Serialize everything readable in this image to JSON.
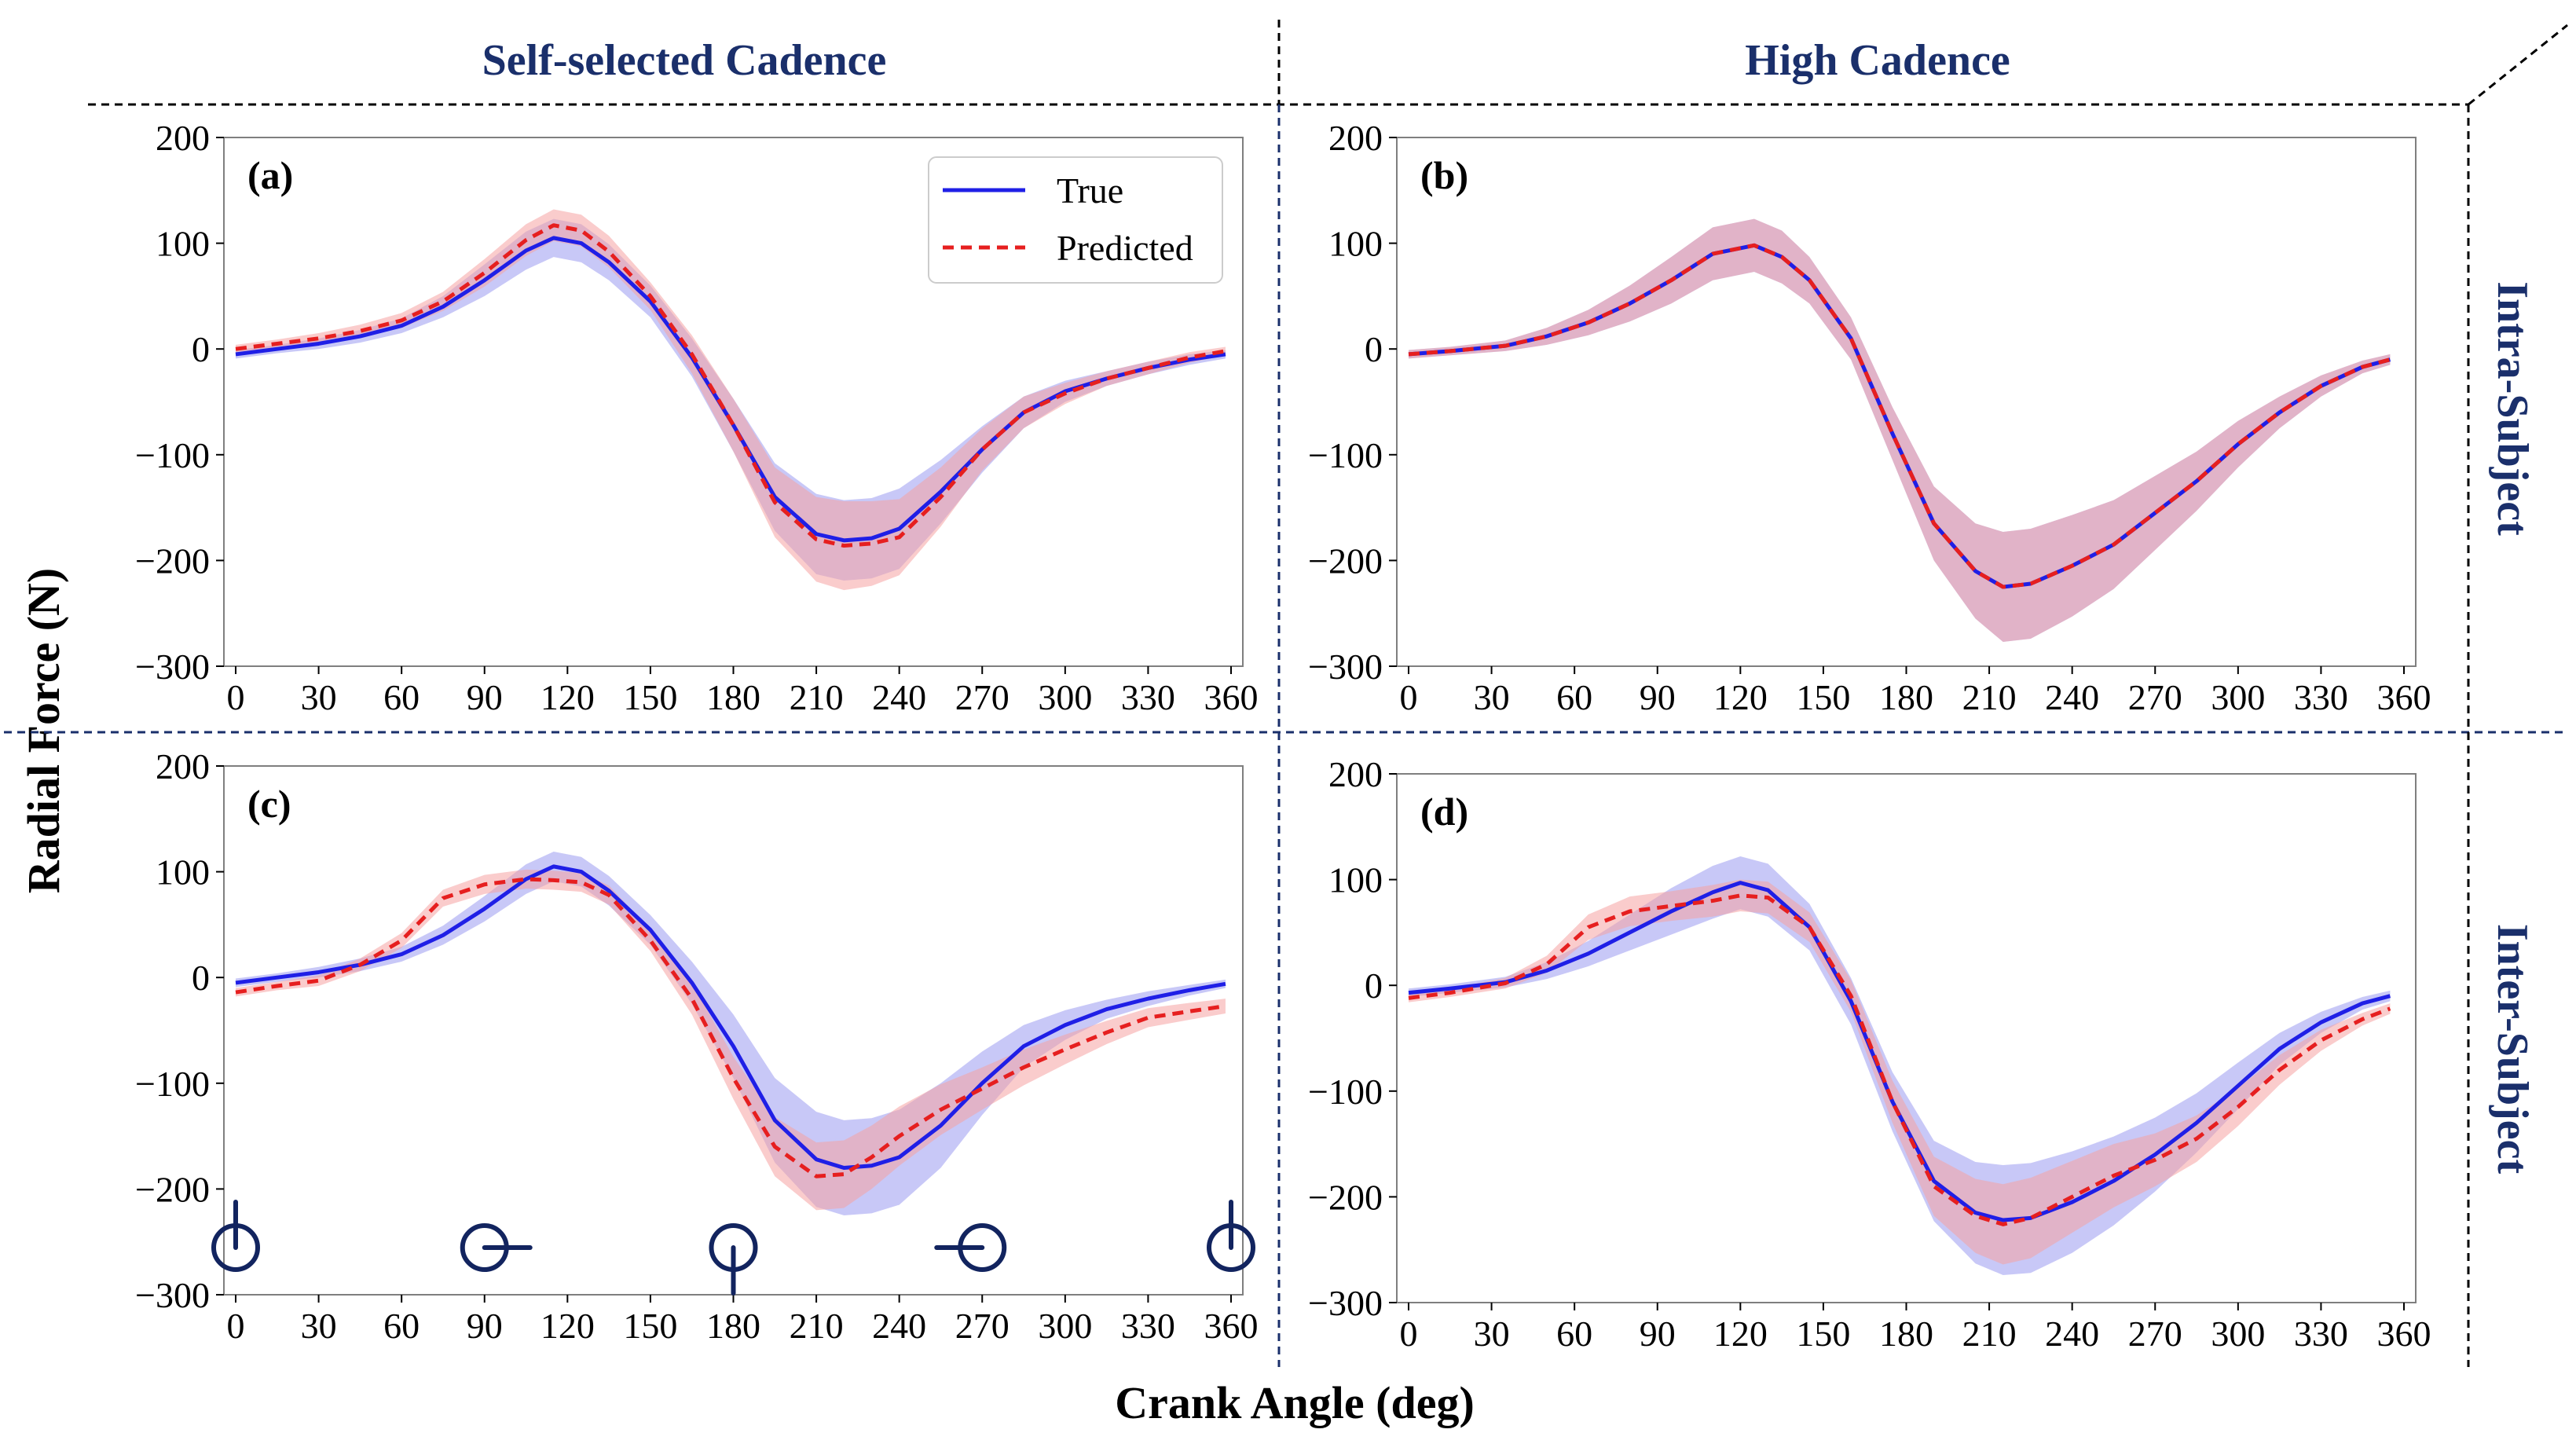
{
  "figure": {
    "column_headers": [
      "Self-selected Cadence",
      "High Cadence"
    ],
    "row_headers": [
      "Intra-Subject",
      "Inter-Subject"
    ],
    "ylabel": "Radial Force (N)",
    "xlabel": "Crank Angle (deg)",
    "legend": {
      "true_label": "True",
      "predicted_label": "Predicted"
    }
  },
  "colors": {
    "true_line": "#1f1fe6",
    "predicted_line": "#e61f1f",
    "true_band": "#9a9af0",
    "predicted_band": "#f5a3a3",
    "header_text": "#1a2f6b",
    "crank_icon": "#12245f",
    "divider": "#000000",
    "divider_blue": "#1a2f6b"
  },
  "chart_data": [
    {
      "id": "a",
      "panel_label": "(a)",
      "type": "line",
      "xlim": [
        0,
        360
      ],
      "ylim": [
        -300,
        200
      ],
      "xticks": [
        0,
        30,
        60,
        90,
        120,
        150,
        180,
        210,
        240,
        270,
        300,
        330,
        360
      ],
      "yticks": [
        200,
        100,
        0,
        -100,
        -200,
        -300
      ],
      "x": [
        0,
        15,
        30,
        45,
        60,
        75,
        90,
        105,
        115,
        125,
        135,
        150,
        165,
        180,
        195,
        210,
        220,
        230,
        240,
        255,
        270,
        285,
        300,
        315,
        330,
        345,
        358
      ],
      "series": [
        {
          "name": "True",
          "values": [
            -5,
            0,
            5,
            12,
            22,
            40,
            65,
            93,
            105,
            100,
            82,
            45,
            -8,
            -72,
            -140,
            -175,
            -181,
            -179,
            -170,
            -135,
            -95,
            -60,
            -40,
            -28,
            -18,
            -10,
            -5
          ],
          "spread": [
            4,
            4,
            5,
            6,
            7,
            10,
            15,
            18,
            18,
            18,
            17,
            15,
            18,
            25,
            32,
            38,
            38,
            38,
            38,
            30,
            22,
            15,
            10,
            7,
            6,
            5,
            4
          ]
        },
        {
          "name": "Predicted",
          "values": [
            0,
            5,
            10,
            17,
            27,
            45,
            72,
            103,
            117,
            112,
            92,
            50,
            -5,
            -72,
            -145,
            -180,
            -186,
            -184,
            -178,
            -140,
            -95,
            -60,
            -42,
            -28,
            -18,
            -8,
            -2
          ],
          "spread": [
            4,
            4,
            5,
            6,
            7,
            9,
            13,
            15,
            15,
            15,
            15,
            13,
            18,
            25,
            33,
            40,
            42,
            40,
            36,
            28,
            20,
            15,
            10,
            7,
            6,
            5,
            4
          ]
        }
      ],
      "legend": "upper-right"
    },
    {
      "id": "b",
      "panel_label": "(b)",
      "type": "line",
      "xlim": [
        0,
        360
      ],
      "ylim": [
        -300,
        200
      ],
      "xticks": [
        0,
        30,
        60,
        90,
        120,
        150,
        180,
        210,
        240,
        270,
        300,
        330,
        360
      ],
      "yticks": [
        200,
        100,
        0,
        -100,
        -200,
        -300
      ],
      "x": [
        0,
        15,
        35,
        50,
        65,
        80,
        95,
        110,
        125,
        135,
        145,
        160,
        175,
        190,
        205,
        215,
        225,
        240,
        255,
        270,
        285,
        300,
        315,
        330,
        345,
        355
      ],
      "series": [
        {
          "name": "True",
          "values": [
            -5,
            -2,
            3,
            12,
            25,
            43,
            65,
            90,
            98,
            87,
            65,
            10,
            -80,
            -165,
            -210,
            -225,
            -222,
            -205,
            -185,
            -155,
            -125,
            -90,
            -60,
            -35,
            -17,
            -10
          ],
          "spread": [
            4,
            4,
            5,
            8,
            12,
            17,
            22,
            25,
            25,
            25,
            22,
            20,
            25,
            35,
            45,
            52,
            52,
            48,
            42,
            35,
            28,
            22,
            15,
            10,
            6,
            5
          ]
        },
        {
          "name": "Predicted",
          "values": [
            -5,
            -2,
            3,
            12,
            25,
            43,
            65,
            90,
            98,
            87,
            65,
            10,
            -80,
            -165,
            -210,
            -225,
            -222,
            -205,
            -185,
            -155,
            -125,
            -90,
            -60,
            -35,
            -17,
            -10
          ],
          "spread": [
            4,
            4,
            5,
            8,
            12,
            17,
            22,
            25,
            25,
            25,
            22,
            20,
            25,
            35,
            45,
            52,
            52,
            48,
            42,
            35,
            28,
            22,
            15,
            10,
            6,
            5
          ]
        }
      ]
    },
    {
      "id": "c",
      "panel_label": "(c)",
      "type": "line",
      "xlim": [
        0,
        360
      ],
      "ylim": [
        -300,
        200
      ],
      "xticks": [
        0,
        30,
        60,
        90,
        120,
        150,
        180,
        210,
        240,
        270,
        300,
        330,
        360
      ],
      "yticks": [
        200,
        100,
        0,
        -100,
        -200,
        -300
      ],
      "x": [
        0,
        15,
        30,
        45,
        60,
        75,
        90,
        105,
        115,
        125,
        135,
        150,
        165,
        180,
        195,
        210,
        220,
        230,
        240,
        255,
        270,
        285,
        300,
        315,
        330,
        345,
        358
      ],
      "series": [
        {
          "name": "True",
          "values": [
            -5,
            0,
            5,
            12,
            22,
            40,
            65,
            93,
            105,
            100,
            82,
            45,
            -5,
            -65,
            -135,
            -172,
            -180,
            -178,
            -170,
            -140,
            -100,
            -65,
            -45,
            -30,
            -20,
            -12,
            -6
          ],
          "spread": [
            4,
            4,
            5,
            6,
            7,
            9,
            12,
            14,
            14,
            14,
            14,
            14,
            20,
            30,
            40,
            45,
            45,
            45,
            45,
            40,
            30,
            20,
            14,
            9,
            7,
            5,
            4
          ]
        },
        {
          "name": "Predicted",
          "values": [
            -14,
            -8,
            -3,
            12,
            35,
            75,
            88,
            93,
            92,
            90,
            78,
            35,
            -20,
            -95,
            -160,
            -188,
            -186,
            -170,
            -150,
            -125,
            -105,
            -85,
            -68,
            -52,
            -38,
            -32,
            -27
          ],
          "spread": [
            4,
            4,
            5,
            6,
            7,
            8,
            9,
            9,
            9,
            9,
            9,
            10,
            15,
            20,
            28,
            32,
            32,
            30,
            28,
            24,
            20,
            17,
            14,
            11,
            9,
            8,
            7
          ]
        }
      ],
      "crank_positions_deg": [
        0,
        90,
        180,
        270,
        360
      ]
    },
    {
      "id": "d",
      "panel_label": "(d)",
      "type": "line",
      "xlim": [
        0,
        360
      ],
      "ylim": [
        -300,
        200
      ],
      "xticks": [
        0,
        30,
        60,
        90,
        120,
        150,
        180,
        210,
        240,
        270,
        300,
        330,
        360
      ],
      "yticks": [
        200,
        100,
        0,
        -100,
        -200,
        -300
      ],
      "x": [
        0,
        15,
        35,
        50,
        65,
        80,
        95,
        110,
        120,
        130,
        145,
        160,
        175,
        190,
        205,
        215,
        225,
        240,
        255,
        270,
        285,
        300,
        315,
        330,
        345,
        355
      ],
      "series": [
        {
          "name": "True",
          "values": [
            -7,
            -3,
            3,
            14,
            30,
            50,
            70,
            88,
            97,
            90,
            55,
            -15,
            -110,
            -185,
            -215,
            -222,
            -220,
            -205,
            -185,
            -160,
            -130,
            -95,
            -60,
            -35,
            -17,
            -10
          ],
          "spread": [
            4,
            4,
            5,
            8,
            12,
            17,
            22,
            25,
            25,
            25,
            22,
            22,
            28,
            38,
            48,
            52,
            52,
            48,
            42,
            35,
            28,
            22,
            15,
            10,
            6,
            5
          ]
        },
        {
          "name": "Predicted",
          "values": [
            -12,
            -7,
            2,
            20,
            55,
            70,
            75,
            80,
            85,
            83,
            55,
            -10,
            -110,
            -190,
            -218,
            -226,
            -220,
            -200,
            -180,
            -165,
            -145,
            -115,
            -80,
            -52,
            -32,
            -22
          ],
          "spread": [
            4,
            4,
            5,
            8,
            12,
            14,
            14,
            15,
            15,
            15,
            14,
            15,
            20,
            28,
            35,
            38,
            38,
            34,
            30,
            25,
            22,
            18,
            14,
            10,
            6,
            5
          ]
        }
      ]
    }
  ]
}
